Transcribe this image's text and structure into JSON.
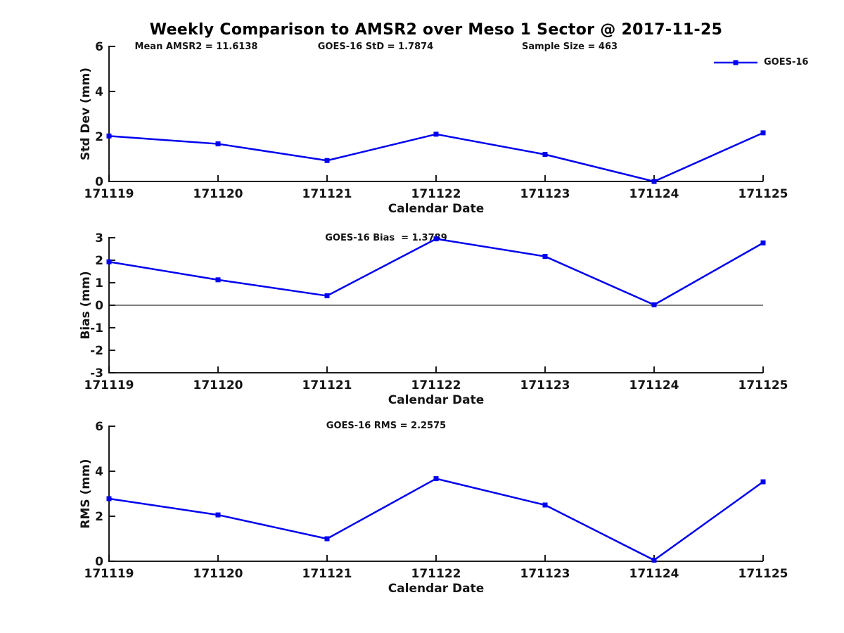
{
  "title": "Weekly Comparison to AMSR2 over Meso 1 Sector @ 2017-11-25",
  "legend": {
    "label": "GOES-16"
  },
  "colors": {
    "series": "#0000EE",
    "axis": "#000000",
    "label": "#151515"
  },
  "stats": {
    "mean_amsr2": 11.6138,
    "goes16_std": 1.7874,
    "sample_size": 463,
    "goes16_bias": 1.3789,
    "goes16_rms": 2.2575
  },
  "chart_data": [
    {
      "type": "line",
      "ylabel": "Std Dev (mm)",
      "xlabel": "Calendar Date",
      "ylim": [
        0,
        6
      ],
      "yticks": [
        0,
        2,
        4,
        6
      ],
      "grid": false,
      "legend_position": "top-right",
      "categories": [
        "171119",
        "171120",
        "171121",
        "171122",
        "171123",
        "171124",
        "171125"
      ],
      "series": [
        {
          "name": "GOES-16",
          "values": [
            2.02,
            1.67,
            0.93,
            2.1,
            1.2,
            0.0,
            2.16
          ]
        }
      ],
      "annotations": [
        "Mean AMSR2 = 11.6138",
        "GOES-16 StD = 1.7874",
        "Sample Size = 463"
      ]
    },
    {
      "type": "line",
      "ylabel": "Bias (mm)",
      "xlabel": "Calendar Date",
      "ylim": [
        -3,
        3
      ],
      "yticks": [
        3,
        2,
        1,
        0,
        -1,
        -2,
        -3
      ],
      "grid": false,
      "zero_line": true,
      "categories": [
        "171119",
        "171120",
        "171121",
        "171122",
        "171123",
        "171124",
        "171125"
      ],
      "series": [
        {
          "name": "GOES-16",
          "values": [
            1.93,
            1.13,
            0.42,
            2.95,
            2.17,
            0.02,
            2.77
          ]
        }
      ],
      "annotation": "GOES-16 Bias  = 1.3789"
    },
    {
      "type": "line",
      "ylabel": "RMS (mm)",
      "xlabel": "Calendar Date",
      "ylim": [
        0,
        6
      ],
      "yticks": [
        0,
        2,
        4,
        6
      ],
      "grid": false,
      "categories": [
        "171119",
        "171120",
        "171121",
        "171122",
        "171123",
        "171124",
        "171125"
      ],
      "series": [
        {
          "name": "GOES-16",
          "values": [
            2.78,
            2.06,
            1.0,
            3.67,
            2.5,
            0.05,
            3.53
          ]
        }
      ],
      "annotation": "GOES-16 RMS = 2.2575"
    }
  ]
}
